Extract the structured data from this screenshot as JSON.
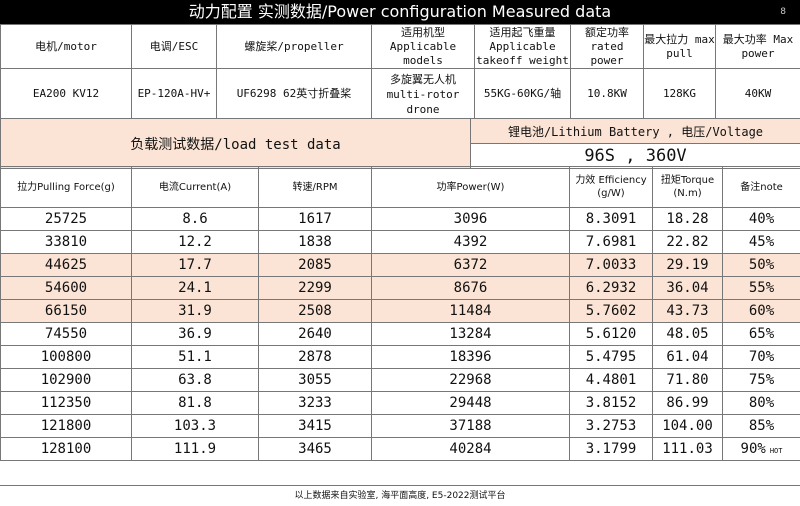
{
  "title": "动力配置 实测数据/Power configuration Measured data",
  "page_number": "8",
  "spec": {
    "headers": [
      "电机/motor",
      "电调/ESC",
      "螺旋桨/propeller",
      "适用机型 Applicable models",
      "适用起飞重量 Applicable takeoff weight",
      "额定功率 rated power",
      "最大拉力 max pull",
      "最大功率 Max power"
    ],
    "values": [
      "EA200 KV12",
      "EP-120A-HV+",
      "UF6298  62英寸折叠桨",
      "多旋翼无人机 multi-rotor drone",
      "55KG-60KG/轴",
      "10.8KW",
      "128KG",
      "40KW"
    ]
  },
  "load_test_label": "负载测试数据/load test data",
  "battery_label": "锂电池/Lithium Battery , 电压/Voltage",
  "battery_value": "96S , 360V",
  "test_table": {
    "headers": [
      "拉力Pulling Force(g)",
      "电流Current(A)",
      "转速/RPM",
      "功率Power(W)",
      "力效 Efficiency (g/W)",
      "扭矩Torque (N.m)",
      "备注note"
    ],
    "rows": [
      [
        "25725",
        "8.6",
        "1617",
        "3096",
        "8.3091",
        "18.28",
        "40%"
      ],
      [
        "33810",
        "12.2",
        "1838",
        "4392",
        "7.6981",
        "22.82",
        "45%"
      ],
      [
        "44625",
        "17.7",
        "2085",
        "6372",
        "7.0033",
        "29.19",
        "50%"
      ],
      [
        "54600",
        "24.1",
        "2299",
        "8676",
        "6.2932",
        "36.04",
        "55%"
      ],
      [
        "66150",
        "31.9",
        "2508",
        "11484",
        "5.7602",
        "43.73",
        "60%"
      ],
      [
        "74550",
        "36.9",
        "2640",
        "13284",
        "5.6120",
        "48.05",
        "65%"
      ],
      [
        "100800",
        "51.1",
        "2878",
        "18396",
        "5.4795",
        "61.04",
        "70%"
      ],
      [
        "102900",
        "63.8",
        "3055",
        "22968",
        "4.4801",
        "71.80",
        "75%"
      ],
      [
        "112350",
        "81.8",
        "3233",
        "29448",
        "3.8152",
        "86.99",
        "80%"
      ],
      [
        "121800",
        "103.3",
        "3415",
        "37188",
        "3.2753",
        "104.00",
        "85%"
      ],
      [
        "128100",
        "111.9",
        "3465",
        "40284",
        "3.1799",
        "111.03",
        "90%"
      ]
    ],
    "highlight_rows": [
      2,
      3,
      4
    ],
    "last_note_suffix": "HOT",
    "highlight_color": "#fbe4d5"
  },
  "footer": "以上数据来自实验室, 海平面高度, E5-2022测试平台"
}
